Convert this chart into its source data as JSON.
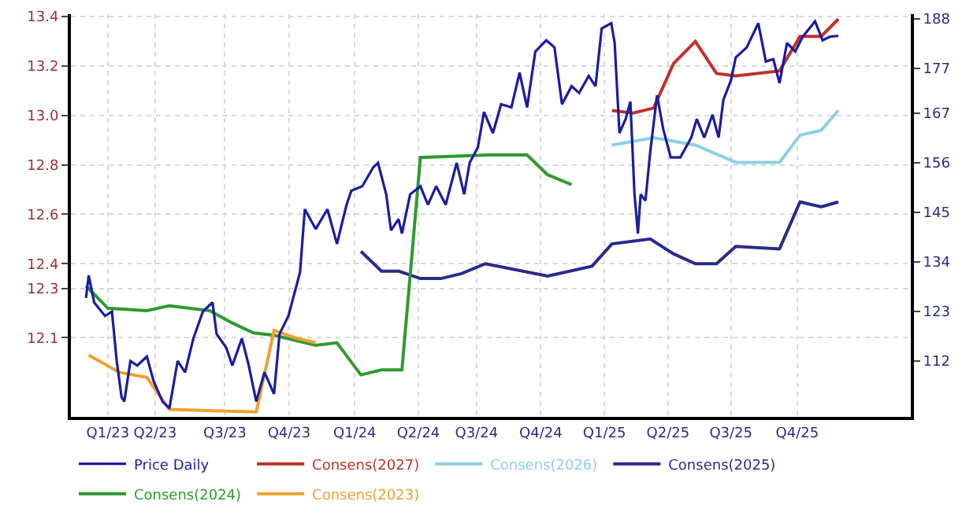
{
  "chart_data": {
    "type": "line",
    "xlim": [
      "2022-12-31",
      "2026-05-12"
    ],
    "xticks": [
      {
        "value": "2023-02-23",
        "label": "Q1/23"
      },
      {
        "value": "2023-05-03",
        "label": "Q2/23"
      },
      {
        "value": "2023-08-13",
        "label": "Q3/23"
      },
      {
        "value": "2023-11-15",
        "label": "Q4/23"
      },
      {
        "value": "2024-02-19",
        "label": "Q1/24"
      },
      {
        "value": "2024-05-22",
        "label": "Q2/24"
      },
      {
        "value": "2024-08-15",
        "label": "Q3/24"
      },
      {
        "value": "2024-11-17",
        "label": "Q4/24"
      },
      {
        "value": "2025-02-18",
        "label": "Q1/25"
      },
      {
        "value": "2025-05-22",
        "label": "Q2/25"
      },
      {
        "value": "2025-08-22",
        "label": "Q3/25"
      },
      {
        "value": "2025-11-27",
        "label": "Q4/25"
      }
    ],
    "ylim": [
      11.78,
      13.41
    ],
    "yticks": [
      13.4,
      13.2,
      {
        "value": 13.0,
        "label": "13.0"
      },
      12.8,
      12.6,
      12.4,
      12.3,
      12.1
    ],
    "y2lim": [
      99.6,
      189
    ],
    "y2ticks": [
      188,
      177,
      167,
      156,
      145,
      134,
      123,
      112
    ],
    "grid": true,
    "legend": "bottom",
    "marker": "none",
    "line_style": "solid",
    "series": [
      {
        "name": "Price Daily",
        "color": "#1c1ca0",
        "axis": "y2",
        "x": [
          "2023-01-22",
          "2023-01-26",
          "2023-02-03",
          "2023-02-19",
          "2023-03-01",
          "2023-03-08",
          "2023-03-15",
          "2023-03-19",
          "2023-03-28",
          "2023-04-07",
          "2023-04-21",
          "2023-05-01",
          "2023-05-14",
          "2023-05-24",
          "2023-06-05",
          "2023-06-16",
          "2023-06-28",
          "2023-07-12",
          "2023-07-26",
          "2023-08-01",
          "2023-08-15",
          "2023-08-24",
          "2023-09-07",
          "2023-09-17",
          "2023-09-28",
          "2023-10-10",
          "2023-10-24",
          "2023-11-01",
          "2023-11-14",
          "2023-12-01",
          "2023-12-08",
          "2023-12-24",
          "2024-01-10",
          "2024-01-24",
          "2024-02-07",
          "2024-02-14",
          "2024-03-01",
          "2024-03-17",
          "2024-03-24",
          "2024-04-05",
          "2024-04-12",
          "2024-04-23",
          "2024-04-28",
          "2024-05-10",
          "2024-05-25",
          "2024-06-05",
          "2024-06-17",
          "2024-07-01",
          "2024-07-17",
          "2024-07-28",
          "2024-08-05",
          "2024-08-17",
          "2024-08-26",
          "2024-09-08",
          "2024-09-20",
          "2024-10-05",
          "2024-10-17",
          "2024-10-28",
          "2024-11-09",
          "2024-11-25",
          "2024-12-07",
          "2024-12-18",
          "2025-01-01",
          "2025-01-12",
          "2025-01-26",
          "2025-02-05",
          "2025-02-14",
          "2025-02-28",
          "2025-03-05",
          "2025-03-12",
          "2025-03-21",
          "2025-03-28",
          "2025-04-03",
          "2025-04-08",
          "2025-04-12",
          "2025-04-19",
          "2025-04-26",
          "2025-05-06",
          "2025-05-15",
          "2025-05-26",
          "2025-06-09",
          "2025-06-25",
          "2025-07-03",
          "2025-07-14",
          "2025-07-26",
          "2025-08-04",
          "2025-08-11",
          "2025-08-22",
          "2025-08-29",
          "2025-09-14",
          "2025-10-01",
          "2025-10-12",
          "2025-10-23",
          "2025-11-01",
          "2025-11-12",
          "2025-11-24",
          "2025-12-05",
          "2025-12-23",
          "2026-01-03",
          "2026-01-14",
          "2026-01-26"
        ],
        "values": [
          126,
          131,
          125,
          122,
          123,
          112,
          104,
          103,
          112,
          111,
          113,
          107.5,
          103,
          101.5,
          112,
          109.5,
          117,
          123,
          125,
          118,
          115,
          111,
          117,
          111,
          103,
          109.5,
          104.7,
          118,
          122,
          131.7,
          145.7,
          141.3,
          145.7,
          138,
          146.7,
          149.8,
          150.8,
          155,
          156,
          149,
          141,
          143.5,
          140.3,
          149,
          150.8,
          146.7,
          150.8,
          146.7,
          156,
          149,
          156,
          159.4,
          167.3,
          162.6,
          169,
          168.3,
          176,
          168.3,
          180.7,
          183.2,
          181.6,
          169,
          173,
          171.5,
          175.3,
          173,
          185.8,
          187,
          182.6,
          162.6,
          165.7,
          169.6,
          149,
          140.3,
          149,
          147.6,
          158.4,
          171,
          163.5,
          157.2,
          157.2,
          161.6,
          165.7,
          161.6,
          166.7,
          161.6,
          170,
          174.3,
          179.4,
          181.6,
          187,
          178.5,
          179,
          173.7,
          182.6,
          180.7,
          184,
          187.4,
          183.2,
          184,
          184.2
        ]
      },
      {
        "name": "Consens(2027)",
        "color": "#c0302a",
        "x": [
          "2025-03-01",
          "2025-04-01",
          "2025-05-01",
          "2025-05-30",
          "2025-07-01",
          "2025-08-01",
          "2025-08-29",
          "2025-11-01",
          "2025-12-01",
          "2026-01-01",
          "2026-01-26"
        ],
        "values": [
          13.02,
          13.01,
          13.03,
          13.21,
          13.3,
          13.17,
          13.16,
          13.18,
          13.32,
          13.32,
          13.39
        ]
      },
      {
        "name": "Consens(2026)",
        "color": "#8ecfe0",
        "x": [
          "2025-03-01",
          "2025-05-01",
          "2025-07-01",
          "2025-08-29",
          "2025-11-01",
          "2025-12-01",
          "2026-01-01",
          "2026-01-26"
        ],
        "values": [
          12.88,
          12.91,
          12.88,
          12.81,
          12.81,
          12.92,
          12.94,
          13.02
        ]
      },
      {
        "name": "Consens(2025)",
        "color": "#2a2a8c",
        "x": [
          "2024-02-28",
          "2024-03-29",
          "2024-04-23",
          "2024-05-25",
          "2024-06-24",
          "2024-07-24",
          "2024-08-28",
          "2024-11-27",
          "2025-01-31",
          "2025-03-01",
          "2025-04-26",
          "2025-05-30",
          "2025-07-01",
          "2025-08-01",
          "2025-08-29",
          "2025-11-01",
          "2025-12-01",
          "2026-01-01",
          "2026-01-26"
        ],
        "values": [
          12.45,
          12.37,
          12.37,
          12.34,
          12.34,
          12.36,
          12.4,
          12.35,
          12.39,
          12.48,
          12.5,
          12.44,
          12.4,
          12.4,
          12.47,
          12.46,
          12.65,
          12.63,
          12.65
        ]
      },
      {
        "name": "Consens(2024)",
        "color": "#2e9a2e",
        "x": [
          "2023-01-22",
          "2023-02-23",
          "2023-04-21",
          "2023-05-24",
          "2023-07-22",
          "2023-08-24",
          "2023-09-24",
          "2023-10-24",
          "2023-12-24",
          "2024-01-24",
          "2024-02-28",
          "2024-03-29",
          "2024-04-28",
          "2024-05-25",
          "2024-09-01",
          "2024-09-24",
          "2024-10-28",
          "2024-11-27",
          "2025-01-01"
        ],
        "values": [
          12.31,
          12.22,
          12.21,
          12.23,
          12.21,
          12.16,
          12.12,
          12.11,
          12.07,
          12.08,
          11.95,
          11.97,
          11.97,
          12.83,
          12.84,
          12.84,
          12.84,
          12.76,
          12.72
        ]
      },
      {
        "name": "Consens(2023)",
        "color": "#f0a030",
        "x": [
          "2023-01-26",
          "2023-03-12",
          "2023-04-21",
          "2023-05-24",
          "2023-09-28",
          "2023-10-24",
          "2023-11-24",
          "2023-12-24"
        ],
        "values": [
          12.03,
          11.96,
          11.94,
          11.81,
          11.8,
          12.13,
          12.1,
          12.08
        ]
      }
    ]
  }
}
